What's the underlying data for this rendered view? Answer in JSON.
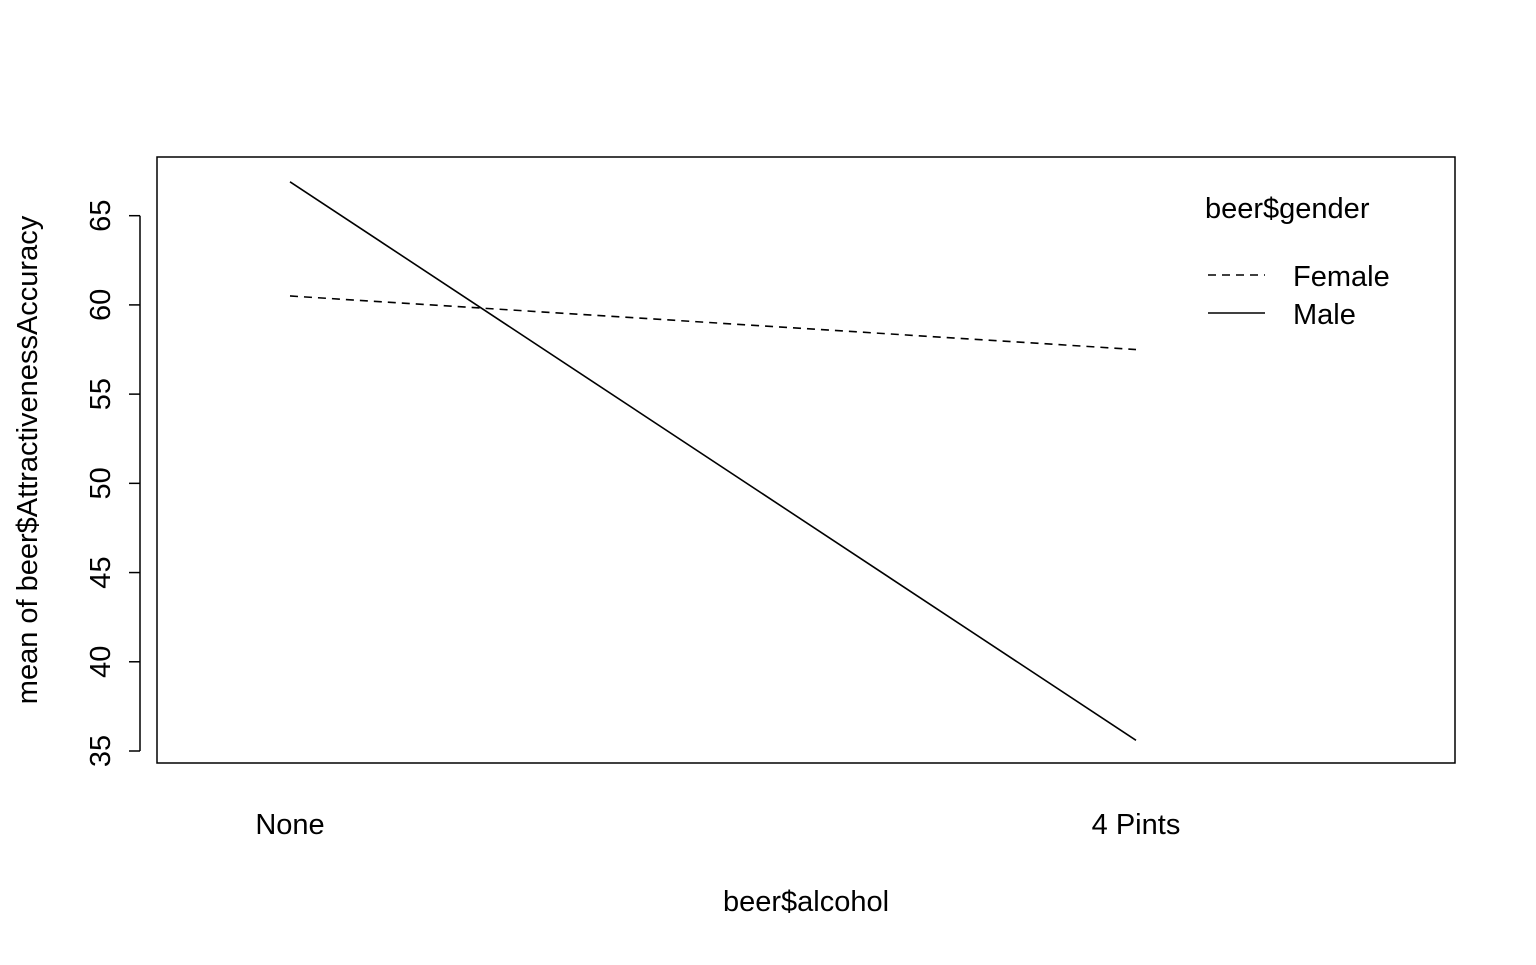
{
  "chart_data": {
    "type": "line",
    "xlabel": "beer$alcohol",
    "ylabel": "mean of  beer$AttractivenessAccuracy",
    "categories": [
      "None",
      "4 Pints"
    ],
    "ylim": [
      35,
      67
    ],
    "yticks": [
      35,
      40,
      45,
      50,
      55,
      60,
      65
    ],
    "grid": false,
    "legend": {
      "title": "beer$gender",
      "placement": "top-right",
      "entries": [
        "Female",
        "Male"
      ]
    },
    "series": [
      {
        "name": "Female",
        "line_style": "dashed",
        "color": "#000000",
        "values": [
          60.5,
          57.5
        ]
      },
      {
        "name": "Male",
        "line_style": "solid",
        "color": "#000000",
        "values": [
          66.9,
          35.6
        ]
      }
    ]
  }
}
